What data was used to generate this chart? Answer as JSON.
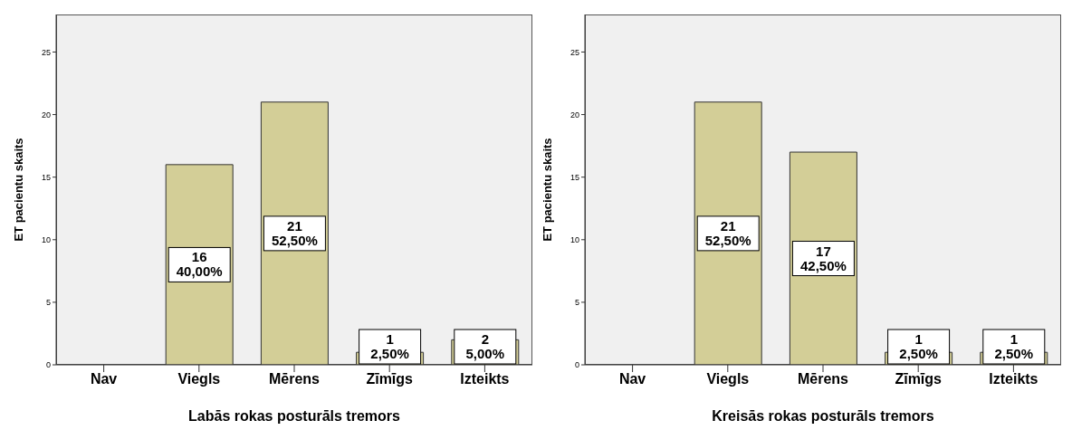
{
  "chart_data": [
    {
      "type": "bar",
      "xlabel": "Labās rokas posturāls tremors",
      "ylabel": "ET pacientu skaits",
      "categories": [
        "Nav",
        "Viegls",
        "Mērens",
        "Zīmīgs",
        "Izteikts"
      ],
      "values": [
        0,
        16,
        21,
        1,
        2
      ],
      "color": "#d3ce97",
      "value_labels": [
        null,
        "16\n40,00%",
        "21\n52,50%",
        "1\n2,50%",
        "2\n5,00%"
      ],
      "ylim": [
        0,
        28
      ],
      "yticks": [
        0,
        5,
        10,
        15,
        20,
        25
      ],
      "grid": false,
      "legend": false
    },
    {
      "type": "bar",
      "xlabel": "Kreisās rokas posturāls tremors",
      "ylabel": "ET pacientu skaits",
      "categories": [
        "Nav",
        "Viegls",
        "Mērens",
        "Zīmīgs",
        "Izteikts"
      ],
      "values": [
        0,
        21,
        17,
        1,
        1
      ],
      "color": "#d3ce97",
      "value_labels": [
        null,
        "21\n52,50%",
        "17\n42,50%",
        "1\n2,50%",
        "1\n2,50%"
      ],
      "ylim": [
        0,
        28
      ],
      "yticks": [
        0,
        5,
        10,
        15,
        20,
        25
      ],
      "grid": false,
      "legend": false
    }
  ]
}
